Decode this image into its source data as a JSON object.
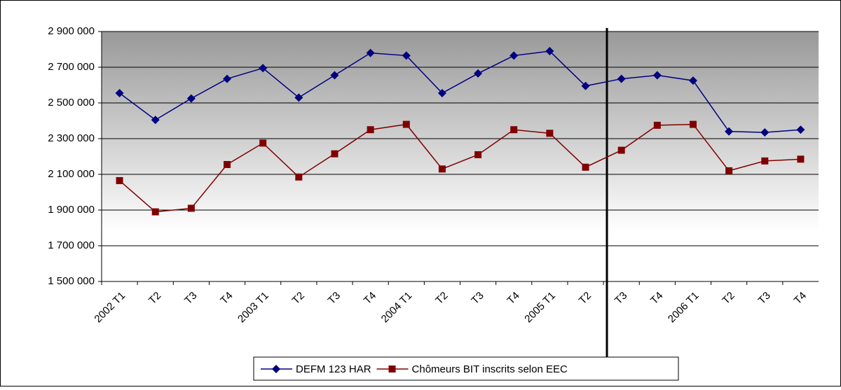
{
  "chart_data": {
    "type": "line",
    "categories": [
      "2002 T1",
      "T2",
      "T3",
      "T4",
      "2003 T1",
      "T2",
      "T3",
      "T4",
      "2004 T1",
      "T2",
      "T3",
      "T4",
      "2005 T1",
      "T2",
      "T3",
      "T4",
      "2006 T1",
      "T2",
      "T3",
      "T4"
    ],
    "series": [
      {
        "name": "DEFM 123 HAR",
        "color": "#000080",
        "marker": "diamond",
        "values": [
          2555000,
          2405000,
          2525000,
          2635000,
          2695000,
          2530000,
          2655000,
          2780000,
          2765000,
          2555000,
          2665000,
          2765000,
          2790000,
          2595000,
          2635000,
          2655000,
          2625000,
          2340000,
          2335000,
          2350000
        ]
      },
      {
        "name": "Chômeurs BIT inscrits selon EEC",
        "color": "#800000",
        "marker": "square",
        "values": [
          2065000,
          1890000,
          1910000,
          2155000,
          2275000,
          2085000,
          2215000,
          2350000,
          2380000,
          2130000,
          2210000,
          2350000,
          2330000,
          2140000,
          2235000,
          2375000,
          2380000,
          2120000,
          2175000,
          2185000
        ]
      }
    ],
    "ylim": [
      1500000,
      2900000
    ],
    "yticks": [
      {
        "value": 1500000,
        "label": "1 500 000"
      },
      {
        "value": 1700000,
        "label": "1 700 000"
      },
      {
        "value": 1900000,
        "label": "1 900 000"
      },
      {
        "value": 2100000,
        "label": "2 100 000"
      },
      {
        "value": 2300000,
        "label": "2 300 000"
      },
      {
        "value": 2500000,
        "label": "2 500 000"
      },
      {
        "value": 2700000,
        "label": "2 700 000"
      },
      {
        "value": 2900000,
        "label": "2 900 000"
      }
    ],
    "grid": true,
    "legend": "bottom"
  }
}
